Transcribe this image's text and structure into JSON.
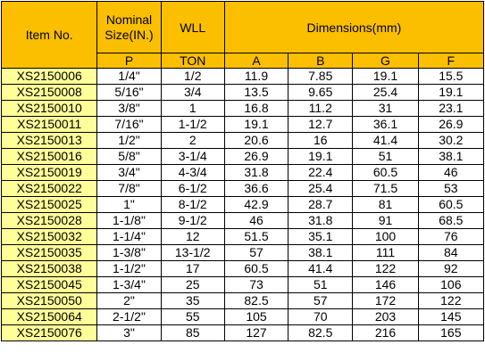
{
  "header": {
    "item_no": "Item No.",
    "nominal_line1": "Nominal",
    "nominal_line2": "Size(IN.)",
    "wll": "WLL",
    "dimensions": "Dimensions(mm)",
    "sub_p": "P",
    "sub_ton": "TON",
    "sub_a": "A",
    "sub_b": "B",
    "sub_g": "G",
    "sub_f": "F"
  },
  "rows": [
    {
      "item": "XS2150006",
      "size": "1/4\"",
      "wll": "1/2",
      "a": "11.9",
      "b": "7.85",
      "g": "19.1",
      "f": "15.5"
    },
    {
      "item": "XS2150008",
      "size": "5/16\"",
      "wll": "3/4",
      "a": "13.5",
      "b": "9.65",
      "g": "25.4",
      "f": "19.1"
    },
    {
      "item": "XS2150010",
      "size": "3/8\"",
      "wll": "1",
      "a": "16.8",
      "b": "11.2",
      "g": "31",
      "f": "23.1"
    },
    {
      "item": "XS2150011",
      "size": "7/16\"",
      "wll": "1-1/2",
      "a": "19.1",
      "b": "12.7",
      "g": "36.1",
      "f": "26.9"
    },
    {
      "item": "XS2150013",
      "size": "1/2\"",
      "wll": "2",
      "a": "20.6",
      "b": "16",
      "g": "41.4",
      "f": "30.2"
    },
    {
      "item": "XS2150016",
      "size": "5/8\"",
      "wll": "3-1/4",
      "a": "26.9",
      "b": "19.1",
      "g": "51",
      "f": "38.1"
    },
    {
      "item": "XS2150019",
      "size": "3/4\"",
      "wll": "4-3/4",
      "a": "31.8",
      "b": "22.4",
      "g": "60.5",
      "f": "46"
    },
    {
      "item": "XS2150022",
      "size": "7/8\"",
      "wll": "6-1/2",
      "a": "36.6",
      "b": "25.4",
      "g": "71.5",
      "f": "53"
    },
    {
      "item": "XS2150025",
      "size": "1\"",
      "wll": "8-1/2",
      "a": "42.9",
      "b": "28.7",
      "g": "81",
      "f": "60.5"
    },
    {
      "item": "XS2150028",
      "size": "1-1/8\"",
      "wll": "9-1/2",
      "a": "46",
      "b": "31.8",
      "g": "91",
      "f": "68.5"
    },
    {
      "item": "XS2150032",
      "size": "1-1/4\"",
      "wll": "12",
      "a": "51.5",
      "b": "35.1",
      "g": "100",
      "f": "76"
    },
    {
      "item": "XS2150035",
      "size": "1-3/8\"",
      "wll": "13-1/2",
      "a": "57",
      "b": "38.1",
      "g": "111",
      "f": "84"
    },
    {
      "item": "XS2150038",
      "size": "1-1/2\"",
      "wll": "17",
      "a": "60.5",
      "b": "41.4",
      "g": "122",
      "f": "92"
    },
    {
      "item": "XS2150045",
      "size": "1-3/4\"",
      "wll": "25",
      "a": "73",
      "b": "51",
      "g": "146",
      "f": "106"
    },
    {
      "item": "XS2150050",
      "size": "2\"",
      "wll": "35",
      "a": "82.5",
      "b": "57",
      "g": "172",
      "f": "122"
    },
    {
      "item": "XS2150064",
      "size": "2-1/2\"",
      "wll": "55",
      "a": "105",
      "b": "70",
      "g": "203",
      "f": "145"
    },
    {
      "item": "XS2150076",
      "size": "3\"",
      "wll": "85",
      "a": "127",
      "b": "82.5",
      "g": "216",
      "f": "165"
    }
  ]
}
